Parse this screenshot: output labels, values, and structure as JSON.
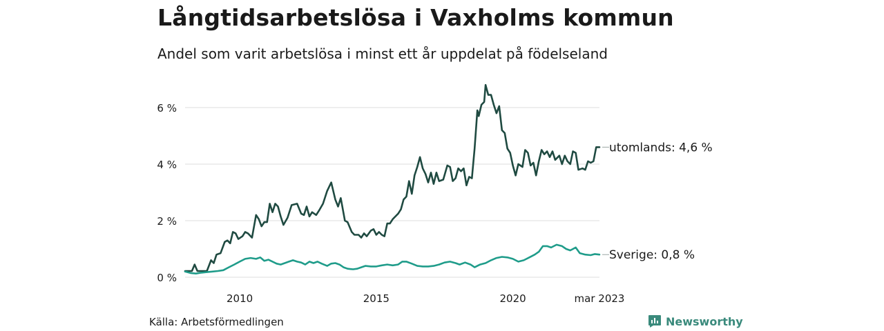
{
  "header": {
    "title": "Långtidsarbetslösa i Vaxholms kommun",
    "subtitle": "Andel som varit arbetslösa i minst ett år uppdelat på födelseland"
  },
  "footer": {
    "source": "Källa: Arbetsförmedlingen",
    "brand": "Newsworthy",
    "brand_icon": "bar-chart-icon"
  },
  "chart_data": {
    "type": "line",
    "x_unit": "year",
    "xlim": [
      2008.0,
      2023.17
    ],
    "ylim": [
      0,
      6.8
    ],
    "y_ticks": [
      0,
      2,
      4,
      6
    ],
    "y_tick_labels": [
      "0 %",
      "2 %",
      "4 %",
      "6 %"
    ],
    "x_ticks": [
      2010,
      2015,
      2020,
      2023.17
    ],
    "x_tick_labels": [
      "2010",
      "2015",
      "2020",
      "mar 2023"
    ],
    "grid": "horizontal",
    "colors": {
      "grid": "#dddddd",
      "connector": "#9aa6a3"
    },
    "series": [
      {
        "name": "utomlands",
        "end_label": "utomlands: 4,6 %",
        "color": "#1f4a41",
        "points": [
          [
            2008.0,
            0.22
          ],
          [
            2008.25,
            0.22
          ],
          [
            2008.35,
            0.45
          ],
          [
            2008.45,
            0.22
          ],
          [
            2008.6,
            0.22
          ],
          [
            2008.8,
            0.22
          ],
          [
            2008.95,
            0.6
          ],
          [
            2009.05,
            0.5
          ],
          [
            2009.15,
            0.8
          ],
          [
            2009.3,
            0.85
          ],
          [
            2009.45,
            1.25
          ],
          [
            2009.55,
            1.3
          ],
          [
            2009.65,
            1.2
          ],
          [
            2009.75,
            1.6
          ],
          [
            2009.85,
            1.55
          ],
          [
            2009.95,
            1.35
          ],
          [
            2010.1,
            1.45
          ],
          [
            2010.2,
            1.6
          ],
          [
            2010.3,
            1.55
          ],
          [
            2010.45,
            1.4
          ],
          [
            2010.6,
            2.2
          ],
          [
            2010.7,
            2.05
          ],
          [
            2010.8,
            1.8
          ],
          [
            2010.9,
            1.95
          ],
          [
            2011.0,
            1.95
          ],
          [
            2011.1,
            2.6
          ],
          [
            2011.2,
            2.3
          ],
          [
            2011.3,
            2.6
          ],
          [
            2011.4,
            2.5
          ],
          [
            2011.5,
            2.15
          ],
          [
            2011.6,
            1.85
          ],
          [
            2011.75,
            2.1
          ],
          [
            2011.9,
            2.55
          ],
          [
            2012.1,
            2.6
          ],
          [
            2012.25,
            2.25
          ],
          [
            2012.35,
            2.2
          ],
          [
            2012.45,
            2.5
          ],
          [
            2012.55,
            2.15
          ],
          [
            2012.65,
            2.3
          ],
          [
            2012.8,
            2.2
          ],
          [
            2012.9,
            2.35
          ],
          [
            2013.05,
            2.6
          ],
          [
            2013.2,
            3.05
          ],
          [
            2013.35,
            3.35
          ],
          [
            2013.5,
            2.75
          ],
          [
            2013.6,
            2.5
          ],
          [
            2013.7,
            2.8
          ],
          [
            2013.85,
            2.0
          ],
          [
            2013.95,
            1.95
          ],
          [
            2014.1,
            1.6
          ],
          [
            2014.2,
            1.5
          ],
          [
            2014.35,
            1.5
          ],
          [
            2014.45,
            1.4
          ],
          [
            2014.55,
            1.55
          ],
          [
            2014.65,
            1.45
          ],
          [
            2014.8,
            1.65
          ],
          [
            2014.9,
            1.7
          ],
          [
            2015.0,
            1.5
          ],
          [
            2015.1,
            1.6
          ],
          [
            2015.2,
            1.5
          ],
          [
            2015.3,
            1.45
          ],
          [
            2015.4,
            1.9
          ],
          [
            2015.5,
            1.9
          ],
          [
            2015.6,
            2.05
          ],
          [
            2015.7,
            2.15
          ],
          [
            2015.8,
            2.25
          ],
          [
            2015.9,
            2.4
          ],
          [
            2016.0,
            2.75
          ],
          [
            2016.1,
            2.85
          ],
          [
            2016.2,
            3.4
          ],
          [
            2016.3,
            2.95
          ],
          [
            2016.4,
            3.6
          ],
          [
            2016.5,
            3.9
          ],
          [
            2016.6,
            4.25
          ],
          [
            2016.7,
            3.85
          ],
          [
            2016.8,
            3.65
          ],
          [
            2016.9,
            3.35
          ],
          [
            2017.0,
            3.7
          ],
          [
            2017.1,
            3.3
          ],
          [
            2017.2,
            3.7
          ],
          [
            2017.3,
            3.4
          ],
          [
            2017.45,
            3.45
          ],
          [
            2017.6,
            3.95
          ],
          [
            2017.7,
            3.9
          ],
          [
            2017.8,
            3.4
          ],
          [
            2017.9,
            3.5
          ],
          [
            2018.0,
            3.85
          ],
          [
            2018.1,
            3.75
          ],
          [
            2018.2,
            3.85
          ],
          [
            2018.3,
            3.25
          ],
          [
            2018.4,
            3.55
          ],
          [
            2018.5,
            3.5
          ],
          [
            2018.6,
            4.55
          ],
          [
            2018.7,
            5.9
          ],
          [
            2018.75,
            5.7
          ],
          [
            2018.85,
            6.1
          ],
          [
            2018.95,
            6.2
          ],
          [
            2019.0,
            6.8
          ],
          [
            2019.1,
            6.45
          ],
          [
            2019.2,
            6.45
          ],
          [
            2019.3,
            6.1
          ],
          [
            2019.4,
            5.8
          ],
          [
            2019.5,
            6.05
          ],
          [
            2019.6,
            5.2
          ],
          [
            2019.7,
            5.1
          ],
          [
            2019.8,
            4.55
          ],
          [
            2019.9,
            4.4
          ],
          [
            2020.0,
            3.95
          ],
          [
            2020.1,
            3.6
          ],
          [
            2020.2,
            4.0
          ],
          [
            2020.35,
            3.9
          ],
          [
            2020.45,
            4.5
          ],
          [
            2020.55,
            4.4
          ],
          [
            2020.65,
            3.95
          ],
          [
            2020.75,
            4.05
          ],
          [
            2020.85,
            3.6
          ],
          [
            2020.95,
            4.1
          ],
          [
            2021.05,
            4.5
          ],
          [
            2021.15,
            4.35
          ],
          [
            2021.25,
            4.45
          ],
          [
            2021.35,
            4.25
          ],
          [
            2021.45,
            4.45
          ],
          [
            2021.55,
            4.15
          ],
          [
            2021.7,
            4.3
          ],
          [
            2021.8,
            4.0
          ],
          [
            2021.9,
            4.3
          ],
          [
            2022.0,
            4.1
          ],
          [
            2022.1,
            4.0
          ],
          [
            2022.2,
            4.45
          ],
          [
            2022.3,
            4.4
          ],
          [
            2022.4,
            3.8
          ],
          [
            2022.55,
            3.85
          ],
          [
            2022.65,
            3.8
          ],
          [
            2022.75,
            4.1
          ],
          [
            2022.85,
            4.05
          ],
          [
            2022.95,
            4.1
          ],
          [
            2023.05,
            4.6
          ],
          [
            2023.17,
            4.6
          ]
        ]
      },
      {
        "name": "Sverige",
        "end_label": "Sverige: 0,8 %",
        "color": "#1f9c8a",
        "points": [
          [
            2008.0,
            0.2
          ],
          [
            2008.2,
            0.15
          ],
          [
            2008.4,
            0.13
          ],
          [
            2008.6,
            0.16
          ],
          [
            2008.8,
            0.18
          ],
          [
            2009.0,
            0.2
          ],
          [
            2009.2,
            0.22
          ],
          [
            2009.4,
            0.25
          ],
          [
            2009.6,
            0.35
          ],
          [
            2009.8,
            0.45
          ],
          [
            2010.0,
            0.55
          ],
          [
            2010.2,
            0.65
          ],
          [
            2010.4,
            0.68
          ],
          [
            2010.6,
            0.65
          ],
          [
            2010.75,
            0.7
          ],
          [
            2010.9,
            0.58
          ],
          [
            2011.05,
            0.62
          ],
          [
            2011.2,
            0.55
          ],
          [
            2011.35,
            0.48
          ],
          [
            2011.5,
            0.45
          ],
          [
            2011.65,
            0.5
          ],
          [
            2011.8,
            0.55
          ],
          [
            2011.95,
            0.6
          ],
          [
            2012.1,
            0.55
          ],
          [
            2012.25,
            0.52
          ],
          [
            2012.4,
            0.45
          ],
          [
            2012.55,
            0.55
          ],
          [
            2012.7,
            0.5
          ],
          [
            2012.85,
            0.55
          ],
          [
            2013.0,
            0.48
          ],
          [
            2013.2,
            0.4
          ],
          [
            2013.35,
            0.48
          ],
          [
            2013.5,
            0.5
          ],
          [
            2013.65,
            0.45
          ],
          [
            2013.8,
            0.35
          ],
          [
            2013.95,
            0.3
          ],
          [
            2014.15,
            0.28
          ],
          [
            2014.3,
            0.3
          ],
          [
            2014.45,
            0.35
          ],
          [
            2014.6,
            0.4
          ],
          [
            2014.8,
            0.38
          ],
          [
            2015.0,
            0.38
          ],
          [
            2015.2,
            0.42
          ],
          [
            2015.4,
            0.45
          ],
          [
            2015.6,
            0.42
          ],
          [
            2015.8,
            0.45
          ],
          [
            2015.95,
            0.55
          ],
          [
            2016.1,
            0.55
          ],
          [
            2016.3,
            0.48
          ],
          [
            2016.5,
            0.4
          ],
          [
            2016.7,
            0.38
          ],
          [
            2016.9,
            0.38
          ],
          [
            2017.1,
            0.4
          ],
          [
            2017.3,
            0.45
          ],
          [
            2017.5,
            0.52
          ],
          [
            2017.7,
            0.55
          ],
          [
            2017.9,
            0.5
          ],
          [
            2018.05,
            0.45
          ],
          [
            2018.25,
            0.52
          ],
          [
            2018.45,
            0.45
          ],
          [
            2018.6,
            0.35
          ],
          [
            2018.8,
            0.45
          ],
          [
            2019.0,
            0.5
          ],
          [
            2019.2,
            0.6
          ],
          [
            2019.4,
            0.68
          ],
          [
            2019.6,
            0.72
          ],
          [
            2019.8,
            0.7
          ],
          [
            2020.0,
            0.65
          ],
          [
            2020.2,
            0.55
          ],
          [
            2020.4,
            0.6
          ],
          [
            2020.6,
            0.7
          ],
          [
            2020.8,
            0.8
          ],
          [
            2020.95,
            0.9
          ],
          [
            2021.1,
            1.1
          ],
          [
            2021.25,
            1.1
          ],
          [
            2021.4,
            1.05
          ],
          [
            2021.6,
            1.15
          ],
          [
            2021.8,
            1.1
          ],
          [
            2021.95,
            1.0
          ],
          [
            2022.1,
            0.95
          ],
          [
            2022.3,
            1.05
          ],
          [
            2022.45,
            0.85
          ],
          [
            2022.65,
            0.8
          ],
          [
            2022.85,
            0.78
          ],
          [
            2023.0,
            0.82
          ],
          [
            2023.17,
            0.8
          ]
        ]
      }
    ]
  }
}
